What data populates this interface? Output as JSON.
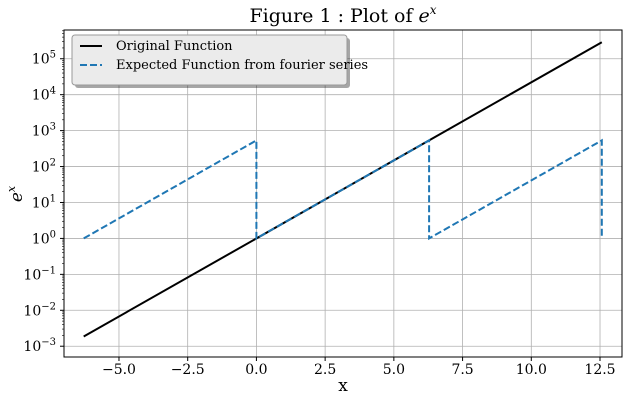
{
  "chart_data": {
    "type": "line",
    "title_main": "Figure 1 : Plot of ",
    "title_base": "e",
    "title_exp": "x",
    "xlabel": "x",
    "ylabel_base": "e",
    "ylabel_exp": "x",
    "yscale": "log",
    "grid": true,
    "legend_position": "top-left",
    "xlim": [
      -7.0,
      13.3
    ],
    "ylim_exp10": [
      -3.3,
      5.8
    ],
    "x_ticks": [
      -5.0,
      -2.5,
      0.0,
      2.5,
      5.0,
      7.5,
      10.0,
      12.5
    ],
    "x_tick_labels": [
      "−5.0",
      "−2.5",
      "0.0",
      "2.5",
      "5.0",
      "7.5",
      "10.0",
      "12.5"
    ],
    "y_tick_exponents": [
      -3,
      -2,
      -1,
      0,
      1,
      2,
      3,
      4,
      5
    ],
    "y_tick_exponent_labels": [
      "−3",
      "−2",
      "−1",
      "0",
      "1",
      "2",
      "3",
      "4",
      "5"
    ],
    "y_tick_base": "10",
    "series": [
      {
        "name": "Original Function",
        "color": "#000000",
        "style": "solid",
        "x": [
          -6.283,
          12.566
        ],
        "y": [
          0.001867,
          286751.3
        ]
      },
      {
        "name": "Expected Function from fourier series",
        "color": "#1f77b4",
        "style": "dashed",
        "x": [
          -6.283,
          -0.001,
          0.0,
          6.282,
          6.283,
          12.565,
          12.566
        ],
        "y": [
          1.0,
          535.5,
          1.0,
          535.5,
          1.0,
          535.5,
          1.0
        ]
      }
    ]
  }
}
